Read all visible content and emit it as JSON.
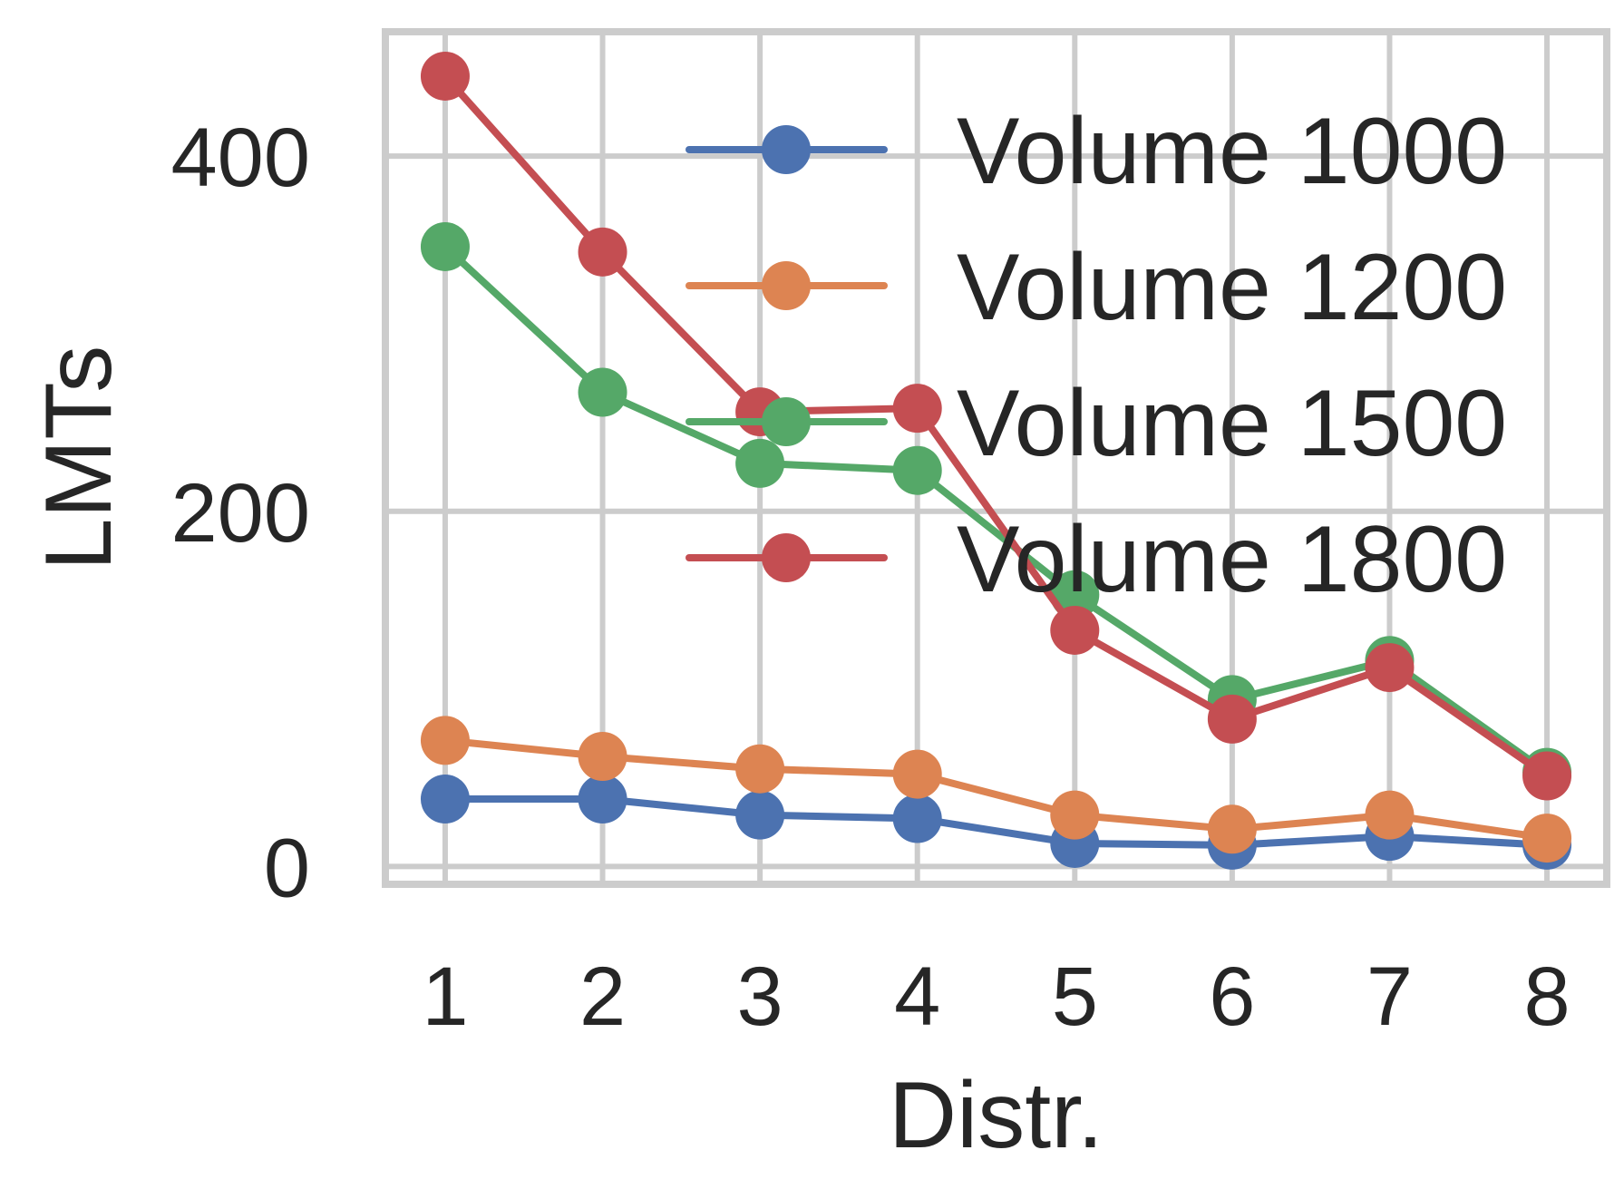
{
  "chart_data": {
    "type": "line",
    "title": "",
    "xlabel": "Distr.",
    "ylabel": "LMTs",
    "x": [
      1,
      2,
      3,
      4,
      5,
      6,
      7,
      8
    ],
    "xticks": [
      "1",
      "2",
      "3",
      "4",
      "5",
      "6",
      "7",
      "8"
    ],
    "yticks": [
      "0",
      "200",
      "400"
    ],
    "xlim": [
      0.62,
      8.38
    ],
    "ylim": [
      -10,
      470
    ],
    "grid": true,
    "legend_position": "upper right",
    "series": [
      {
        "name": "Volume 1000",
        "color": "#4c72b0",
        "values": [
          38,
          38,
          29,
          27,
          13,
          12,
          17,
          12
        ]
      },
      {
        "name": "Volume 1200",
        "color": "#dd8452",
        "values": [
          71,
          62,
          55,
          52,
          29,
          21,
          29,
          16
        ]
      },
      {
        "name": "Volume 1500",
        "color": "#55a868",
        "values": [
          349,
          267,
          227,
          223,
          153,
          94,
          116,
          53
        ]
      },
      {
        "name": "Volume 1800",
        "color": "#c44e52",
        "values": [
          445,
          346,
          256,
          258,
          133,
          83,
          112,
          51
        ]
      }
    ]
  }
}
